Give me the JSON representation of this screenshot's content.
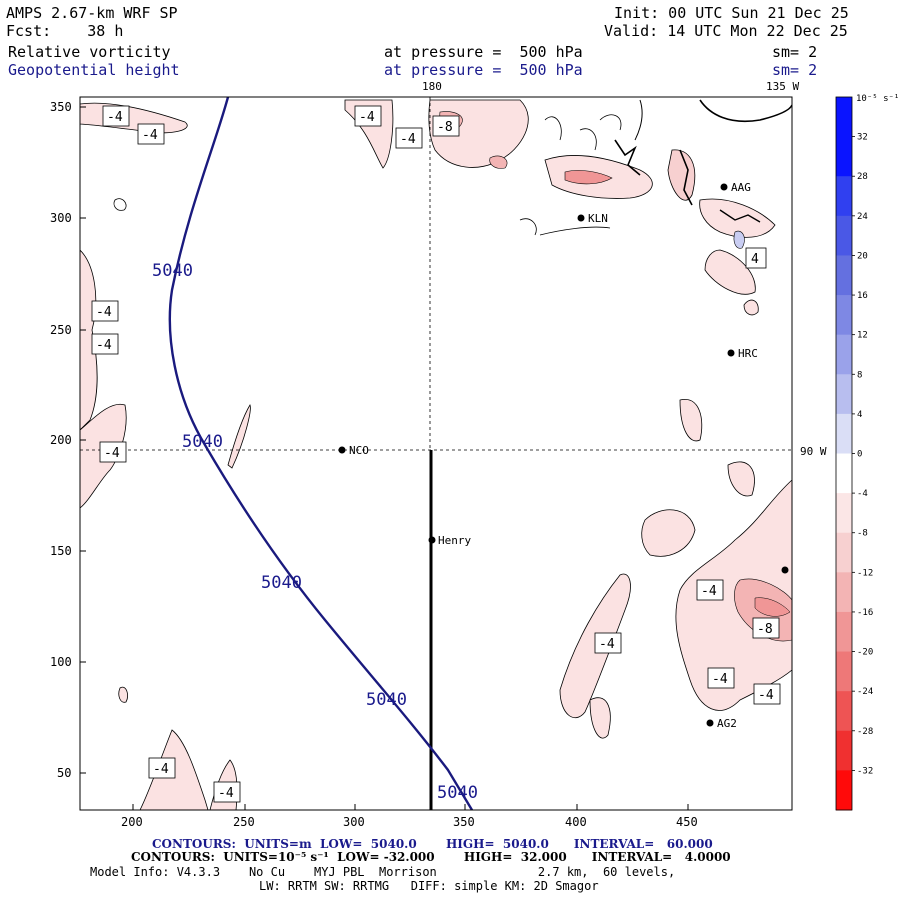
{
  "header": {
    "model_title": "AMPS 2.67-km WRF SP",
    "forecast": "Fcst:    38 h",
    "init": "Init: 00 UTC Sun 21 Dec 25",
    "valid": "Valid: 14 UTC Mon 22 Dec 25",
    "field1_name": "Relative vorticity",
    "field1_level": "at pressure =  500 hPa",
    "field1_sm": "sm= 2",
    "field2_name": "Geopotential height",
    "field2_level": "at pressure =  500 hPa",
    "field2_sm": "sm= 2"
  },
  "map": {
    "x_ticks": [
      "200",
      "250",
      "300",
      "350",
      "400",
      "450"
    ],
    "y_ticks": [
      "350",
      "300",
      "250",
      "200",
      "150",
      "100",
      "50"
    ],
    "meridian_labels": [
      "180",
      "135 W",
      "90 W"
    ],
    "stations": [
      "AAG",
      "KLN",
      "HRC",
      "NCO",
      "Henry",
      "AG2"
    ],
    "height_contour_labels": [
      "5040",
      "5040",
      "5040",
      "5040",
      "5040"
    ],
    "vorticity_labels": [
      "-4",
      "-4",
      "-4",
      "-4",
      "-8",
      "-4",
      "-4",
      "-4",
      "4",
      "-4",
      "-8",
      "-4",
      "-4",
      "-4",
      "-4",
      "-4"
    ]
  },
  "colorbar": {
    "unit": "10⁻⁵ s⁻¹",
    "labels": [
      "32",
      "28",
      "24",
      "20",
      "16",
      "12",
      "8",
      "4",
      "0",
      "-4",
      "-8",
      "-12",
      "-16",
      "-20",
      "-24",
      "-28",
      "-32"
    ],
    "colors": [
      "#0a14ff",
      "#3040f0",
      "#4a58e6",
      "#6470e0",
      "#7e88e4",
      "#9aa2ea",
      "#b8beef",
      "#dadef6",
      "#ffffff",
      "#fbe6e6",
      "#f7d0d0",
      "#f3b4b4",
      "#f09696",
      "#ee7878",
      "#ee5454",
      "#f03030",
      "#ff0a0a"
    ]
  },
  "footer": {
    "line1": "CONTOURS:  UNITS=m  LOW=  5040.0       HIGH=  5040.0      INTERVAL=   60.000",
    "line2": "CONTOURS:  UNITS=10⁻⁵ s⁻¹  LOW= -32.000       HIGH=  32.000      INTERVAL=   4.0000",
    "line3": "Model Info: V4.3.3    No Cu    MYJ PBL  Morrison              2.7 km,  60 levels,",
    "line4": "LW: RRTM SW: RRTMG   DIFF: simple KM: 2D Smagor"
  }
}
